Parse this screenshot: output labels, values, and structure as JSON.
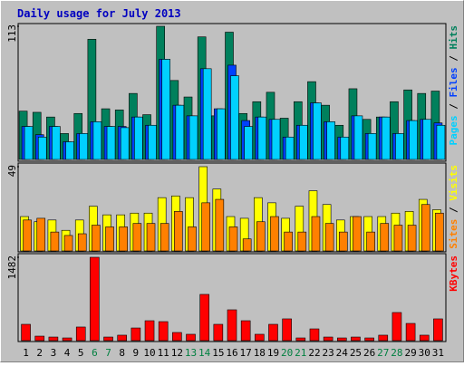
{
  "chart_data": [
    {
      "type": "bar",
      "title": "Daily usage for July 2013",
      "categories": [
        "1",
        "2",
        "3",
        "4",
        "5",
        "6",
        "7",
        "8",
        "9",
        "10",
        "11",
        "12",
        "13",
        "14",
        "15",
        "16",
        "17",
        "18",
        "19",
        "20",
        "21",
        "22",
        "23",
        "24",
        "25",
        "26",
        "27",
        "28",
        "29",
        "30",
        "31"
      ],
      "category_colors": [
        "#000000",
        "#000000",
        "#000000",
        "#000000",
        "#000000",
        "#008040",
        "#008040",
        "#000000",
        "#000000",
        "#000000",
        "#000000",
        "#000000",
        "#008040",
        "#008040",
        "#000000",
        "#000000",
        "#000000",
        "#000000",
        "#000000",
        "#008040",
        "#008040",
        "#000000",
        "#000000",
        "#000000",
        "#000000",
        "#000000",
        "#008040",
        "#008040",
        "#000000",
        "#000000",
        "#000000"
      ],
      "legend_separator": " / ",
      "ylim": [
        0,
        113
      ],
      "yticks": [
        113
      ],
      "series": [
        {
          "name": "Hits",
          "color": "#00805c",
          "values": [
            41,
            40,
            36,
            22,
            39,
            102,
            43,
            42,
            56,
            38,
            113,
            67,
            53,
            104,
            37,
            108,
            39,
            49,
            57,
            35,
            49,
            66,
            46,
            29,
            60,
            34,
            36,
            49,
            59,
            56,
            58
          ]
        },
        {
          "name": "Files",
          "color": "#0040ff",
          "values": [
            28,
            21,
            28,
            15,
            22,
            32,
            28,
            28,
            36,
            29,
            85,
            46,
            37,
            77,
            43,
            80,
            33,
            36,
            34,
            19,
            29,
            48,
            32,
            19,
            37,
            22,
            36,
            22,
            33,
            34,
            31
          ]
        },
        {
          "name": "Pages",
          "color": "#00d0ff",
          "values": [
            28,
            19,
            28,
            15,
            22,
            32,
            28,
            27,
            36,
            29,
            85,
            46,
            37,
            77,
            43,
            71,
            28,
            36,
            34,
            19,
            29,
            48,
            32,
            19,
            37,
            22,
            36,
            22,
            33,
            34,
            29
          ]
        }
      ]
    },
    {
      "type": "bar",
      "ylim": [
        0,
        49
      ],
      "yticks": [
        49
      ],
      "series": [
        {
          "name": "Visits",
          "color": "#ffff00",
          "values": [
            20,
            17,
            18,
            12,
            18,
            26,
            21,
            21,
            22,
            22,
            31,
            32,
            31,
            49,
            36,
            20,
            19,
            31,
            28,
            19,
            26,
            35,
            27,
            18,
            20,
            20,
            20,
            22,
            23,
            30,
            24
          ]
        },
        {
          "name": "Sites",
          "color": "#ff8000",
          "values": [
            18,
            19,
            11,
            9,
            10,
            15,
            14,
            14,
            16,
            16,
            16,
            23,
            14,
            28,
            30,
            14,
            7,
            17,
            20,
            11,
            11,
            20,
            16,
            11,
            20,
            11,
            16,
            15,
            15,
            27,
            22
          ]
        }
      ]
    },
    {
      "type": "bar",
      "ylim": [
        0,
        1482
      ],
      "yticks": [
        1482
      ],
      "series": [
        {
          "name": "KBytes",
          "color": "#ff0000",
          "values": [
            290,
            80,
            64,
            48,
            242,
            1482,
            64,
            97,
            225,
            354,
            338,
            145,
            113,
            822,
            290,
            548,
            354,
            113,
            290,
            387,
            48,
            209,
            64,
            48,
            64,
            48,
            97,
            500,
            306,
            97,
            387
          ]
        }
      ]
    }
  ]
}
